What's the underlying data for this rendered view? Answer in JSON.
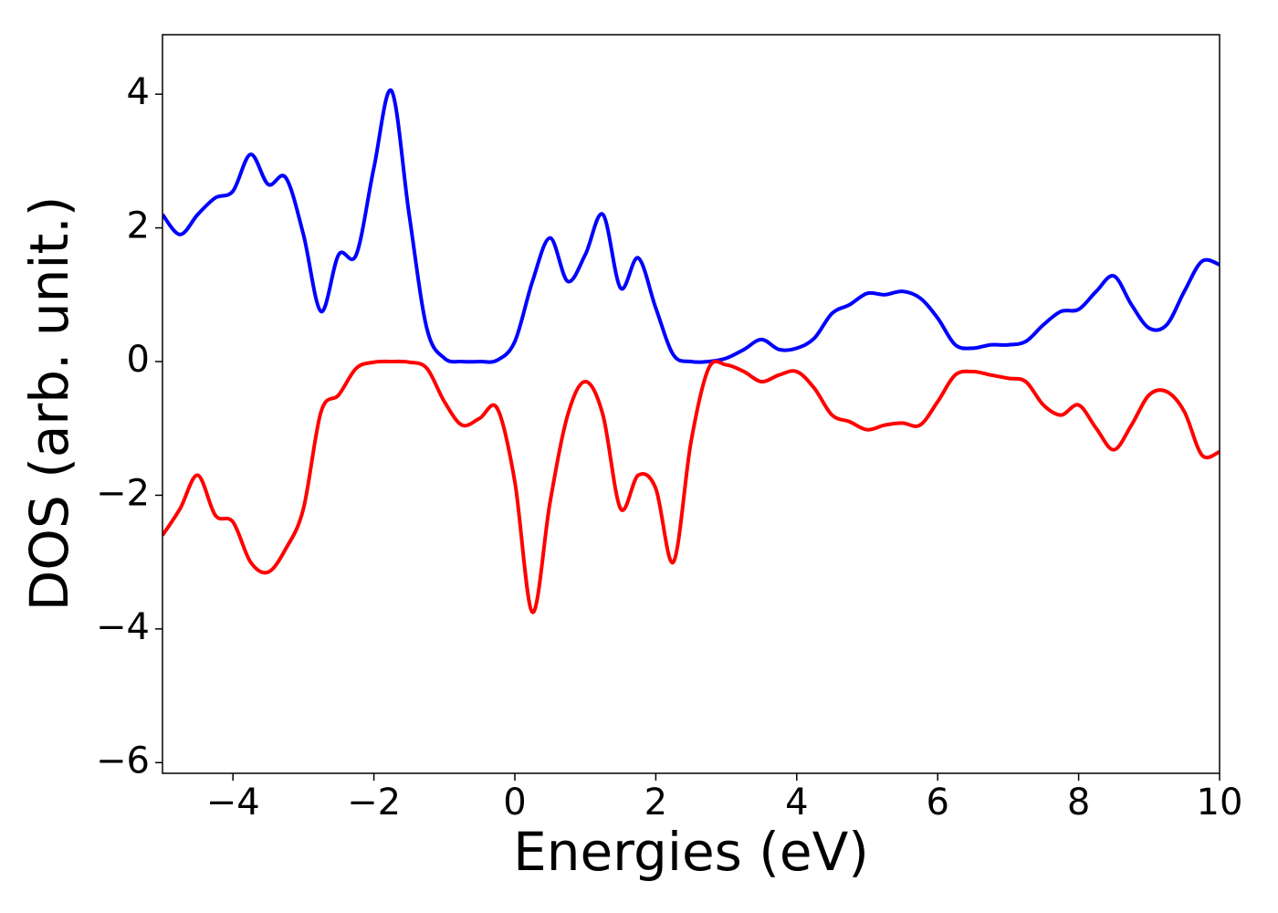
{
  "chart_data": {
    "type": "line",
    "xlabel": "Energies (eV)",
    "ylabel": "DOS (arb. unit.)",
    "x": [
      -5,
      -4.75,
      -4.5,
      -4.25,
      -4,
      -3.75,
      -3.5,
      -3.25,
      -3,
      -2.75,
      -2.5,
      -2.25,
      -2,
      -1.75,
      -1.5,
      -1.25,
      -1,
      -0.75,
      -0.5,
      -0.25,
      0,
      0.25,
      0.5,
      0.75,
      1,
      1.25,
      1.5,
      1.75,
      2,
      2.25,
      2.5,
      2.75,
      3,
      3.25,
      3.5,
      3.75,
      4,
      4.25,
      4.5,
      4.75,
      5,
      5.25,
      5.5,
      5.75,
      6,
      6.25,
      6.5,
      6.75,
      7,
      7.25,
      7.5,
      7.75,
      8,
      8.25,
      8.5,
      8.75,
      9,
      9.25,
      9.5,
      9.75,
      10
    ],
    "series": [
      {
        "color": "#0000ff",
        "values": [
          2.2,
          1.9,
          2.2,
          2.45,
          2.55,
          3.1,
          2.65,
          2.75,
          1.9,
          0.75,
          1.6,
          1.6,
          2.9,
          4.05,
          2.2,
          0.5,
          0.05,
          0,
          0,
          0.02,
          0.3,
          1.2,
          1.85,
          1.2,
          1.6,
          2.2,
          1.1,
          1.55,
          0.8,
          0.1,
          0,
          0,
          0.05,
          0.18,
          0.33,
          0.18,
          0.2,
          0.35,
          0.72,
          0.85,
          1.02,
          1.0,
          1.05,
          0.95,
          0.65,
          0.25,
          0.2,
          0.25,
          0.25,
          0.3,
          0.55,
          0.75,
          0.78,
          1.05,
          1.28,
          0.85,
          0.5,
          0.55,
          1.05,
          1.5,
          1.45
        ]
      },
      {
        "color": "#ff0000",
        "values": [
          -2.6,
          -2.2,
          -1.7,
          -2.3,
          -2.4,
          -3.0,
          -3.15,
          -2.8,
          -2.2,
          -0.75,
          -0.5,
          -0.1,
          -0.01,
          0,
          -0.01,
          -0.1,
          -0.6,
          -0.95,
          -0.85,
          -0.7,
          -1.8,
          -3.75,
          -2.1,
          -0.8,
          -0.3,
          -0.8,
          -2.2,
          -1.7,
          -1.9,
          -3.0,
          -1.2,
          -0.1,
          -0.05,
          -0.15,
          -0.3,
          -0.2,
          -0.15,
          -0.4,
          -0.8,
          -0.9,
          -1.02,
          -0.95,
          -0.92,
          -0.95,
          -0.6,
          -0.2,
          -0.15,
          -0.2,
          -0.25,
          -0.3,
          -0.65,
          -0.8,
          -0.65,
          -1.0,
          -1.32,
          -0.95,
          -0.5,
          -0.45,
          -0.75,
          -1.4,
          -1.35
        ]
      }
    ],
    "xlim": [
      -5,
      10
    ],
    "xticks": [
      {
        "value": -4,
        "label": "−4"
      },
      {
        "value": -2,
        "label": "−2"
      },
      0,
      2,
      4,
      6,
      8,
      10
    ],
    "ylim": [
      -6.16,
      4.89
    ],
    "yticks": [
      {
        "value": -6,
        "label": "−6"
      },
      {
        "value": -4,
        "label": "−4"
      },
      {
        "value": -2,
        "label": "−2"
      },
      0,
      2,
      4
    ]
  }
}
